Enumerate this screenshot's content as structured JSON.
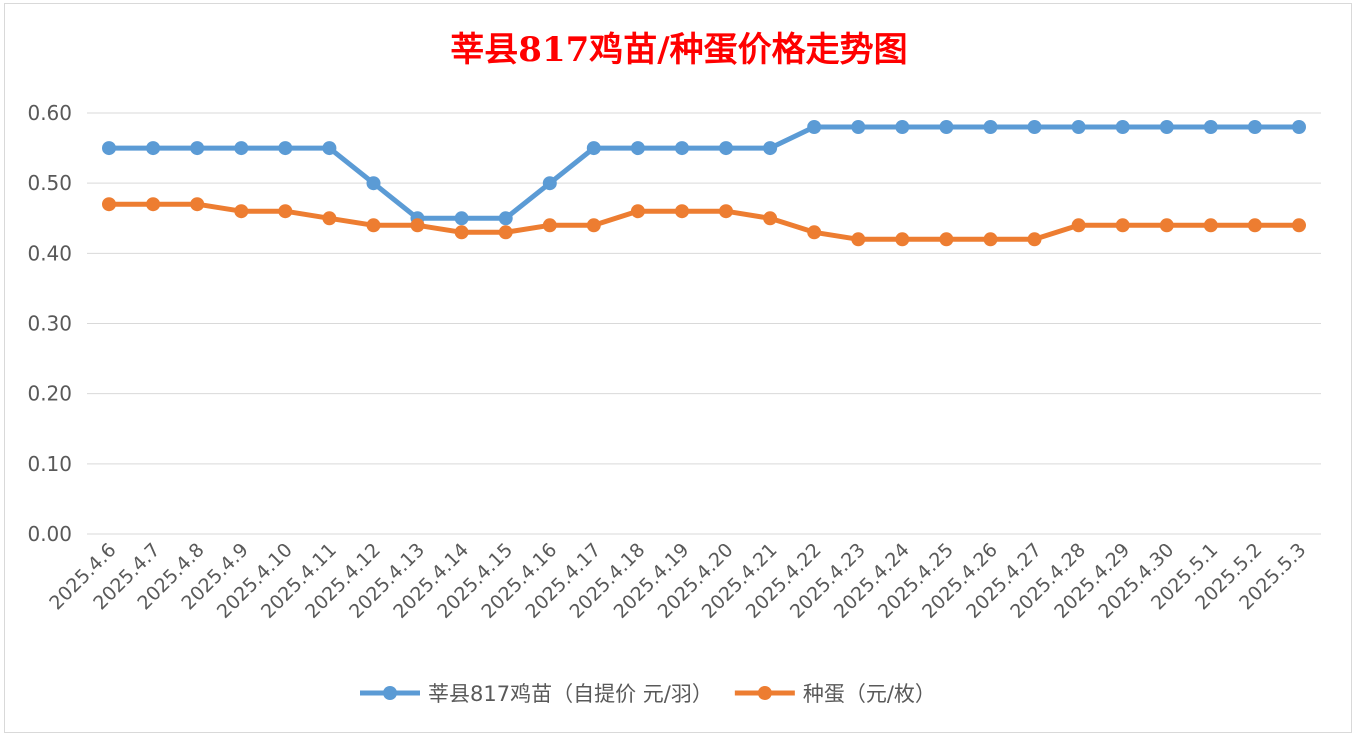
{
  "chart_data": {
    "type": "line",
    "title": "莘县817鸡苗/种蛋价格走势图",
    "categories": [
      "2025.4.6",
      "2025.4.7",
      "2025.4.8",
      "2025.4.9",
      "2025.4.10",
      "2025.4.11",
      "2025.4.12",
      "2025.4.13",
      "2025.4.14",
      "2025.4.15",
      "2025.4.16",
      "2025.4.17",
      "2025.4.18",
      "2025.4.19",
      "2025.4.20",
      "2025.4.21",
      "2025.4.22",
      "2025.4.23",
      "2025.4.24",
      "2025.4.25",
      "2025.4.26",
      "2025.4.27",
      "2025.4.28",
      "2025.4.29",
      "2025.4.30",
      "2025.5.1",
      "2025.5.2",
      "2025.5.3"
    ],
    "series": [
      {
        "name": "莘县817鸡苗（自提价 元/羽）",
        "color": "#5b9bd5",
        "values": [
          0.55,
          0.55,
          0.55,
          0.55,
          0.55,
          0.55,
          0.5,
          0.45,
          0.45,
          0.45,
          0.5,
          0.55,
          0.55,
          0.55,
          0.55,
          0.55,
          0.58,
          0.58,
          0.58,
          0.58,
          0.58,
          0.58,
          0.58,
          0.58,
          0.58,
          0.58,
          0.58,
          0.58
        ]
      },
      {
        "name": "种蛋（元/枚）",
        "color": "#ed7d31",
        "values": [
          0.47,
          0.47,
          0.47,
          0.46,
          0.46,
          0.45,
          0.44,
          0.44,
          0.43,
          0.43,
          0.44,
          0.44,
          0.46,
          0.46,
          0.46,
          0.45,
          0.43,
          0.42,
          0.42,
          0.42,
          0.42,
          0.42,
          0.44,
          0.44,
          0.44,
          0.44,
          0.44,
          0.44
        ]
      }
    ],
    "yticks": [
      "0.00",
      "0.10",
      "0.20",
      "0.30",
      "0.40",
      "0.50",
      "0.60"
    ],
    "ylim": [
      0,
      0.6
    ],
    "grid": true,
    "legend": "bottom",
    "title_color": "#ff0000",
    "gridline_color": "#d9d9d9",
    "text_color": "#595959"
  }
}
